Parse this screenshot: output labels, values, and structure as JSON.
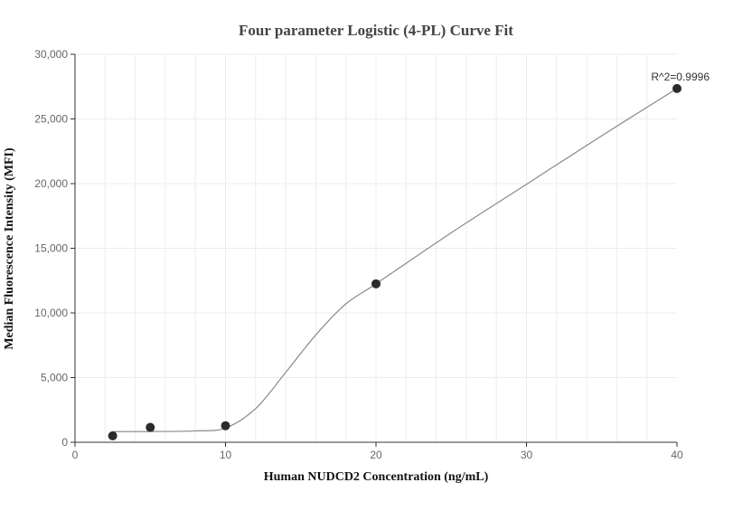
{
  "chart_data": {
    "type": "scatter",
    "title": "Four parameter Logistic (4-PL) Curve Fit",
    "xlabel": "Human NUDCD2 Concentration (ng/mL)",
    "ylabel": "Median Fluorescence Intensity (MFI)",
    "xlim": [
      0,
      40
    ],
    "ylim": [
      0,
      30000
    ],
    "x_ticks": [
      0,
      10,
      20,
      30,
      40
    ],
    "x_tick_labels": [
      "0",
      "10",
      "20",
      "30",
      "40"
    ],
    "y_ticks": [
      0,
      5000,
      10000,
      15000,
      20000,
      25000,
      30000
    ],
    "y_tick_labels": [
      "0",
      "5,000",
      "10,000",
      "15,000",
      "20,000",
      "25,000",
      "30,000"
    ],
    "grid": true,
    "series": [
      {
        "x": [
          2.5,
          5,
          10,
          20,
          40
        ],
        "y": [
          500,
          1150,
          1280,
          12250,
          27350
        ]
      }
    ],
    "fit_curve": {
      "x": [
        2.5,
        5,
        8,
        10,
        12,
        14,
        16,
        18,
        20,
        25,
        30,
        35,
        40
      ],
      "y": [
        820,
        830,
        880,
        1100,
        2600,
        5400,
        8300,
        10700,
        12250,
        16200,
        19950,
        23700,
        27350
      ]
    },
    "annotations": [
      {
        "text": "R^2=0.9996",
        "x": 40,
        "y": 27350
      }
    ],
    "colors": {
      "point": "#2b2b2b",
      "curve": "#8a8a8a",
      "grid": "#ececec",
      "axis": "#333333"
    }
  }
}
